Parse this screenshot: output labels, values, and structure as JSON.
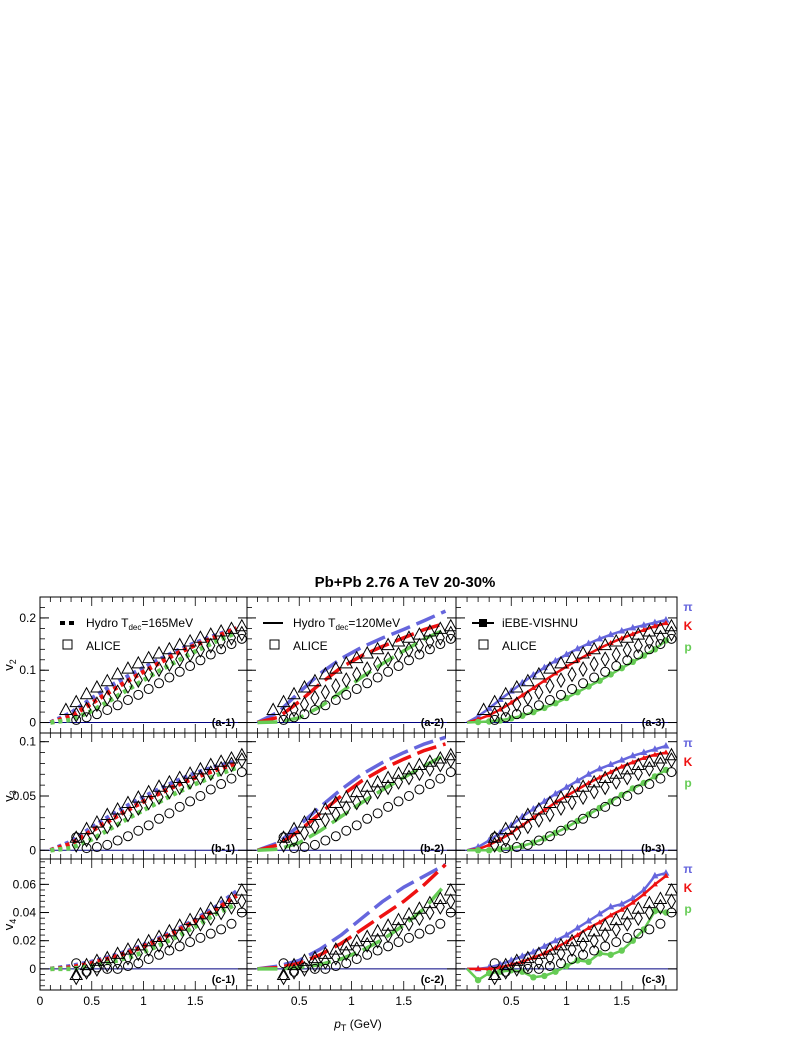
{
  "figure": {
    "title": "Pb+Pb   2.76 A TeV    20-30%",
    "xlabel": "p_T (GeV)",
    "x_main": "p",
    "x_sub": "T",
    "x_unit": " (GeV)"
  },
  "columns": [
    {
      "legend_model": "Hydro T",
      "legend_model_sub": "dec",
      "legend_model_suffix": "=165MeV",
      "legend_data": "ALICE",
      "model_style": "dotted"
    },
    {
      "legend_model": "Hydro T",
      "legend_model_sub": "dec",
      "legend_model_suffix": "=120MeV",
      "legend_data": "ALICE",
      "model_style": "solid"
    },
    {
      "legend_model": "iEBE-VISHNU",
      "legend_model_sub": "",
      "legend_model_suffix": "",
      "legend_data": "ALICE",
      "model_style": "solid-markers"
    }
  ],
  "rows": [
    {
      "ylabel": "v",
      "ylabel_sub": "2",
      "ylim": [
        -0.02,
        0.24
      ],
      "yticks": [
        0,
        0.1,
        0.2
      ],
      "ytick_labels": [
        "0",
        "0.1",
        "0.2"
      ]
    },
    {
      "ylabel": "v",
      "ylabel_sub": "3",
      "ylim": [
        -0.008,
        0.108
      ],
      "yticks": [
        0,
        0.05,
        0.1
      ],
      "ytick_labels": [
        "0",
        "0.05",
        "0.1"
      ]
    },
    {
      "ylabel": "v",
      "ylabel_sub": "4",
      "ylim": [
        -0.015,
        0.078
      ],
      "yticks": [
        0,
        0.02,
        0.04,
        0.06
      ],
      "ytick_labels": [
        "0",
        "0.02",
        "0.04",
        "0.06"
      ]
    }
  ],
  "xaxis": {
    "xlim": [
      0,
      2.0
    ],
    "xticks": [
      0,
      0.5,
      1,
      1.5
    ],
    "xtick_labels": [
      "0",
      "0.5",
      "1",
      "1.5"
    ]
  },
  "panel_labels": [
    [
      "(a-1)",
      "(a-2)",
      "(a-3)"
    ],
    [
      "(b-1)",
      "(b-2)",
      "(b-3)"
    ],
    [
      "(c-1)",
      "(c-2)",
      "(c-3)"
    ]
  ],
  "species": [
    {
      "label": "π",
      "color": "#6666dd"
    },
    {
      "label": "K",
      "color": "#ee1111"
    },
    {
      "label": "p",
      "color": "#66cc55"
    }
  ],
  "colors": {
    "pion": "#6666dd",
    "kaon": "#ee1111",
    "proton": "#66cc55",
    "data": "#000000",
    "zero_line": "#000080"
  },
  "chart_data": {
    "type": "line",
    "description_units": "x in GeV (p_T), y = flow coefficient v_n",
    "alice_data": {
      "v2": {
        "pion": {
          "x": [
            0.25,
            0.35,
            0.45,
            0.55,
            0.65,
            0.75,
            0.85,
            0.95,
            1.05,
            1.15,
            1.25,
            1.35,
            1.45,
            1.55,
            1.65,
            1.75,
            1.85,
            1.95
          ],
          "y": [
            0.025,
            0.04,
            0.055,
            0.068,
            0.08,
            0.093,
            0.104,
            0.114,
            0.124,
            0.133,
            0.141,
            0.149,
            0.156,
            0.163,
            0.169,
            0.175,
            0.18,
            0.185
          ]
        },
        "kaon": {
          "x": [
            0.35,
            0.45,
            0.55,
            0.65,
            0.75,
            0.85,
            0.95,
            1.05,
            1.15,
            1.25,
            1.35,
            1.45,
            1.55,
            1.65,
            1.75,
            1.85,
            1.95
          ],
          "y": [
            0.015,
            0.025,
            0.035,
            0.047,
            0.058,
            0.07,
            0.081,
            0.092,
            0.102,
            0.112,
            0.121,
            0.13,
            0.139,
            0.147,
            0.155,
            0.162,
            0.17
          ]
        },
        "proton": {
          "x": [
            0.35,
            0.45,
            0.55,
            0.65,
            0.75,
            0.85,
            0.95,
            1.05,
            1.15,
            1.25,
            1.35,
            1.45,
            1.55,
            1.65,
            1.75,
            1.85,
            1.95
          ],
          "y": [
            0.005,
            0.01,
            0.016,
            0.024,
            0.033,
            0.043,
            0.053,
            0.064,
            0.075,
            0.086,
            0.097,
            0.108,
            0.119,
            0.13,
            0.14,
            0.15,
            0.16
          ]
        }
      },
      "v3": {
        "pion": {
          "x": [
            0.35,
            0.45,
            0.55,
            0.65,
            0.75,
            0.85,
            0.95,
            1.05,
            1.15,
            1.25,
            1.35,
            1.45,
            1.55,
            1.65,
            1.75,
            1.85,
            1.95
          ],
          "y": [
            0.012,
            0.02,
            0.026,
            0.033,
            0.038,
            0.044,
            0.049,
            0.054,
            0.059,
            0.063,
            0.067,
            0.071,
            0.075,
            0.079,
            0.082,
            0.085,
            0.088
          ]
        },
        "kaon": {
          "x": [
            0.35,
            0.45,
            0.55,
            0.65,
            0.75,
            0.85,
            0.95,
            1.05,
            1.15,
            1.25,
            1.35,
            1.45,
            1.55,
            1.65,
            1.75,
            1.85,
            1.95
          ],
          "y": [
            0.005,
            0.01,
            0.016,
            0.022,
            0.028,
            0.033,
            0.039,
            0.044,
            0.049,
            0.054,
            0.058,
            0.063,
            0.067,
            0.071,
            0.075,
            0.079,
            0.083
          ]
        },
        "proton": {
          "x": [
            0.35,
            0.45,
            0.55,
            0.65,
            0.75,
            0.85,
            0.95,
            1.05,
            1.15,
            1.25,
            1.35,
            1.45,
            1.55,
            1.65,
            1.75,
            1.85,
            1.95
          ],
          "y": [
            0.012,
            0.002,
            0.003,
            0.005,
            0.009,
            0.013,
            0.018,
            0.023,
            0.029,
            0.034,
            0.04,
            0.045,
            0.05,
            0.056,
            0.061,
            0.066,
            0.072
          ]
        }
      },
      "v4": {
        "pion": {
          "x": [
            0.35,
            0.45,
            0.55,
            0.65,
            0.75,
            0.85,
            0.95,
            1.05,
            1.15,
            1.25,
            1.35,
            1.45,
            1.55,
            1.65,
            1.75,
            1.85,
            1.95
          ],
          "y": [
            -0.004,
            0.003,
            0.006,
            0.008,
            0.011,
            0.014,
            0.017,
            0.02,
            0.023,
            0.027,
            0.031,
            0.035,
            0.039,
            0.043,
            0.047,
            0.05,
            0.056
          ]
        },
        "kaon": {
          "x": [
            0.35,
            0.45,
            0.55,
            0.65,
            0.75,
            0.85,
            0.95,
            1.05,
            1.15,
            1.25,
            1.35,
            1.45,
            1.55,
            1.65,
            1.75,
            1.85,
            1.95
          ],
          "y": [
            -0.006,
            -0.002,
            0.0,
            0.003,
            0.005,
            0.008,
            0.011,
            0.014,
            0.017,
            0.02,
            0.024,
            0.028,
            0.032,
            0.036,
            0.04,
            0.044,
            0.048
          ]
        },
        "proton": {
          "x": [
            0.35,
            0.45,
            0.55,
            0.65,
            0.75,
            0.85,
            0.95,
            1.05,
            1.15,
            1.25,
            1.35,
            1.45,
            1.55,
            1.65,
            1.75,
            1.85,
            1.95
          ],
          "y": [
            0.004,
            -0.002,
            0.001,
            0.0,
            0.0,
            0.002,
            0.004,
            0.007,
            0.01,
            0.013,
            0.016,
            0.019,
            0.022,
            0.025,
            0.028,
            0.032,
            0.04
          ]
        }
      }
    },
    "models": {
      "hydro_165": {
        "v2": {
          "x": [
            0.1,
            0.3,
            0.5,
            0.7,
            0.9,
            1.1,
            1.3,
            1.5,
            1.7,
            1.9
          ],
          "pion": [
            0.0,
            0.018,
            0.046,
            0.072,
            0.094,
            0.115,
            0.135,
            0.152,
            0.167,
            0.18
          ],
          "kaon": [
            0.0,
            0.012,
            0.037,
            0.062,
            0.086,
            0.108,
            0.13,
            0.148,
            0.164,
            0.18
          ],
          "proton": [
            0.0,
            0.005,
            0.022,
            0.045,
            0.069,
            0.093,
            0.115,
            0.136,
            0.155,
            0.172
          ]
        },
        "v3": {
          "x": [
            0.1,
            0.3,
            0.5,
            0.7,
            0.9,
            1.1,
            1.3,
            1.5,
            1.7,
            1.9
          ],
          "pion": [
            0.0,
            0.008,
            0.021,
            0.033,
            0.044,
            0.054,
            0.063,
            0.071,
            0.077,
            0.082
          ],
          "kaon": [
            0.0,
            0.006,
            0.018,
            0.029,
            0.04,
            0.05,
            0.059,
            0.067,
            0.074,
            0.08
          ],
          "proton": [
            0.0,
            0.002,
            0.01,
            0.021,
            0.032,
            0.042,
            0.052,
            0.061,
            0.069,
            0.076
          ]
        },
        "v4": {
          "x": [
            0.1,
            0.3,
            0.5,
            0.7,
            0.9,
            1.1,
            1.3,
            1.5,
            1.7,
            1.9
          ],
          "pion": [
            0.0,
            0.002,
            0.005,
            0.009,
            0.014,
            0.02,
            0.027,
            0.035,
            0.044,
            0.055
          ],
          "kaon": [
            0.0,
            0.001,
            0.004,
            0.008,
            0.013,
            0.019,
            0.026,
            0.034,
            0.042,
            0.052
          ],
          "proton": [
            0.0,
            0.0,
            0.002,
            0.005,
            0.009,
            0.015,
            0.022,
            0.03,
            0.039,
            0.046
          ]
        }
      },
      "hydro_120": {
        "v2": {
          "x": [
            0.1,
            0.3,
            0.5,
            0.7,
            0.9,
            1.1,
            1.3,
            1.5,
            1.7,
            1.9
          ],
          "pion": [
            0.0,
            0.02,
            0.058,
            0.094,
            0.122,
            0.144,
            0.162,
            0.178,
            0.195,
            0.213
          ],
          "kaon": [
            0.0,
            0.01,
            0.04,
            0.074,
            0.105,
            0.128,
            0.146,
            0.162,
            0.178,
            0.19
          ],
          "proton": [
            0.0,
            0.001,
            0.009,
            0.03,
            0.058,
            0.087,
            0.113,
            0.137,
            0.16,
            0.178
          ]
        },
        "v3": {
          "x": [
            0.1,
            0.3,
            0.5,
            0.7,
            0.9,
            1.1,
            1.3,
            1.5,
            1.7,
            1.9
          ],
          "pion": [
            0.0,
            0.007,
            0.023,
            0.04,
            0.056,
            0.07,
            0.081,
            0.09,
            0.098,
            0.104
          ],
          "kaon": [
            0.0,
            0.005,
            0.018,
            0.034,
            0.05,
            0.064,
            0.075,
            0.084,
            0.092,
            0.098
          ],
          "proton": [
            0.0,
            0.001,
            0.007,
            0.018,
            0.031,
            0.044,
            0.056,
            0.067,
            0.078,
            0.088
          ]
        },
        "v4": {
          "x": [
            0.1,
            0.3,
            0.5,
            0.7,
            0.9,
            1.1,
            1.3,
            1.5,
            1.7,
            1.9
          ],
          "pion": [
            0.0,
            0.002,
            0.006,
            0.014,
            0.024,
            0.036,
            0.048,
            0.058,
            0.066,
            0.074
          ],
          "kaon": [
            0.0,
            0.001,
            0.004,
            0.01,
            0.018,
            0.028,
            0.038,
            0.048,
            0.06,
            0.074
          ],
          "proton": [
            0.0,
            0.0,
            0.001,
            0.003,
            0.007,
            0.013,
            0.021,
            0.031,
            0.043,
            0.06
          ]
        }
      },
      "ebe_vishnu": {
        "v2": {
          "x": [
            0.1,
            0.2,
            0.3,
            0.4,
            0.5,
            0.6,
            0.7,
            0.8,
            0.9,
            1.0,
            1.1,
            1.2,
            1.3,
            1.4,
            1.5,
            1.6,
            1.7,
            1.8,
            1.9
          ],
          "pion": [
            0.0,
            0.012,
            0.027,
            0.044,
            0.06,
            0.076,
            0.091,
            0.105,
            0.118,
            0.13,
            0.141,
            0.151,
            0.16,
            0.168,
            0.175,
            0.181,
            0.186,
            0.191,
            0.196
          ],
          "kaon": [
            0.0,
            0.006,
            0.014,
            0.025,
            0.038,
            0.052,
            0.066,
            0.08,
            0.094,
            0.107,
            0.119,
            0.131,
            0.142,
            0.152,
            0.161,
            0.169,
            0.177,
            0.184,
            0.19
          ],
          "proton": [
            0.0,
            0.001,
            0.002,
            0.004,
            0.008,
            0.013,
            0.02,
            0.028,
            0.037,
            0.047,
            0.058,
            0.069,
            0.08,
            0.092,
            0.104,
            0.116,
            0.128,
            0.14,
            0.157
          ]
        },
        "v3": {
          "x": [
            0.1,
            0.2,
            0.3,
            0.4,
            0.5,
            0.6,
            0.7,
            0.8,
            0.9,
            1.0,
            1.1,
            1.2,
            1.3,
            1.4,
            1.5,
            1.6,
            1.7,
            1.8,
            1.9
          ],
          "pion": [
            0.0,
            0.003,
            0.009,
            0.016,
            0.023,
            0.031,
            0.038,
            0.045,
            0.052,
            0.058,
            0.064,
            0.07,
            0.075,
            0.079,
            0.083,
            0.087,
            0.09,
            0.093,
            0.096
          ],
          "kaon": [
            0.0,
            0.001,
            0.005,
            0.01,
            0.016,
            0.023,
            0.03,
            0.037,
            0.044,
            0.05,
            0.056,
            0.062,
            0.067,
            0.072,
            0.077,
            0.081,
            0.085,
            0.088,
            0.09
          ],
          "proton": [
            0.0,
            0.0,
            0.0,
            0.001,
            0.002,
            0.004,
            0.007,
            0.011,
            0.016,
            0.021,
            0.027,
            0.033,
            0.039,
            0.045,
            0.051,
            0.057,
            0.062,
            0.068,
            0.074
          ]
        },
        "v4": {
          "x": [
            0.1,
            0.2,
            0.3,
            0.4,
            0.5,
            0.6,
            0.7,
            0.8,
            0.9,
            1.0,
            1.1,
            1.2,
            1.3,
            1.4,
            1.5,
            1.6,
            1.7,
            1.8,
            1.9
          ],
          "pion": [
            0.0,
            0.0,
            0.001,
            0.003,
            0.006,
            0.009,
            0.012,
            0.016,
            0.02,
            0.024,
            0.029,
            0.034,
            0.039,
            0.044,
            0.046,
            0.05,
            0.056,
            0.066,
            0.068
          ],
          "kaon": [
            0.0,
            0.0,
            0.0,
            0.001,
            0.003,
            0.005,
            0.008,
            0.011,
            0.015,
            0.019,
            0.024,
            0.029,
            0.033,
            0.038,
            0.042,
            0.047,
            0.053,
            0.06,
            0.066
          ],
          "proton": [
            0.0,
            -0.008,
            -0.003,
            -0.002,
            -0.001,
            -0.002,
            -0.006,
            -0.005,
            -0.002,
            0.002,
            0.006,
            0.005,
            0.011,
            0.01,
            0.013,
            0.02,
            0.028,
            0.041,
            0.04
          ]
        }
      }
    }
  }
}
